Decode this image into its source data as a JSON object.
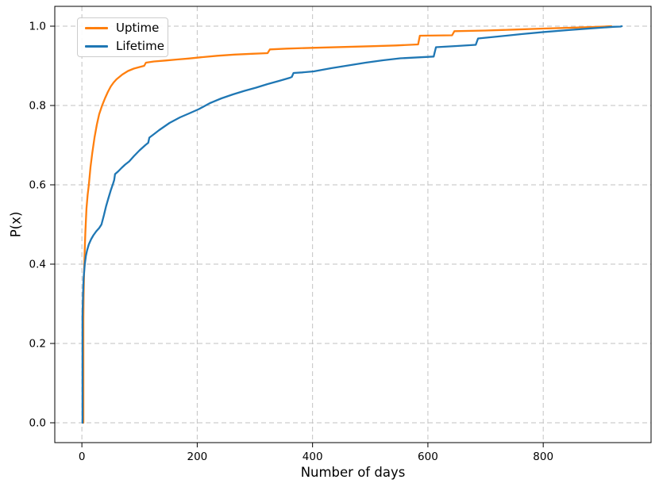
{
  "chart_data": {
    "type": "line",
    "title": "",
    "xlabel": "Number of days",
    "ylabel": "P(x)",
    "xlim": [
      -47,
      987
    ],
    "ylim": [
      -0.05,
      1.05
    ],
    "xticks": [
      0,
      200,
      400,
      600,
      800
    ],
    "yticks": [
      0.0,
      0.2,
      0.4,
      0.6,
      0.8,
      1.0
    ],
    "grid": true,
    "grid_style": "dashed",
    "grid_color": "#c2c2c2",
    "legend_position": "upper left",
    "series": [
      {
        "name": "Uptime",
        "color": "#ff7f0e",
        "points": [
          [
            2.5,
            0.0
          ],
          [
            2.5,
            0.26
          ],
          [
            3,
            0.32
          ],
          [
            4,
            0.385
          ],
          [
            5,
            0.44
          ],
          [
            6,
            0.48
          ],
          [
            8,
            0.54
          ],
          [
            10,
            0.575
          ],
          [
            12,
            0.6
          ],
          [
            15,
            0.645
          ],
          [
            18,
            0.68
          ],
          [
            22,
            0.72
          ],
          [
            26,
            0.752
          ],
          [
            30,
            0.778
          ],
          [
            35,
            0.8
          ],
          [
            40,
            0.818
          ],
          [
            45,
            0.834
          ],
          [
            50,
            0.848
          ],
          [
            55,
            0.858
          ],
          [
            60,
            0.866
          ],
          [
            70,
            0.878
          ],
          [
            80,
            0.887
          ],
          [
            90,
            0.893
          ],
          [
            100,
            0.897
          ],
          [
            108,
            0.9
          ],
          [
            111,
            0.908
          ],
          [
            125,
            0.911
          ],
          [
            145,
            0.9135
          ],
          [
            165,
            0.916
          ],
          [
            185,
            0.9185
          ],
          [
            205,
            0.9215
          ],
          [
            235,
            0.9255
          ],
          [
            265,
            0.9285
          ],
          [
            295,
            0.9305
          ],
          [
            322,
            0.932
          ],
          [
            326,
            0.9415
          ],
          [
            355,
            0.9435
          ],
          [
            400,
            0.9455
          ],
          [
            450,
            0.9475
          ],
          [
            500,
            0.9495
          ],
          [
            545,
            0.9515
          ],
          [
            583,
            0.954
          ],
          [
            586,
            0.976
          ],
          [
            642,
            0.977
          ],
          [
            646,
            0.9875
          ],
          [
            700,
            0.989
          ],
          [
            750,
            0.9915
          ],
          [
            800,
            0.994
          ],
          [
            855,
            0.9965
          ],
          [
            905,
            0.999
          ],
          [
            918,
            1.0
          ]
        ]
      },
      {
        "name": "Lifetime",
        "color": "#1f77b4",
        "points": [
          [
            1,
            0.0
          ],
          [
            1,
            0.27
          ],
          [
            2,
            0.325
          ],
          [
            3,
            0.365
          ],
          [
            5,
            0.4
          ],
          [
            7,
            0.421
          ],
          [
            9,
            0.435
          ],
          [
            12,
            0.45
          ],
          [
            16,
            0.463
          ],
          [
            20,
            0.473
          ],
          [
            25,
            0.483
          ],
          [
            30,
            0.491
          ],
          [
            34,
            0.5
          ],
          [
            38,
            0.522
          ],
          [
            42,
            0.546
          ],
          [
            46,
            0.566
          ],
          [
            50,
            0.586
          ],
          [
            54,
            0.603
          ],
          [
            56,
            0.612
          ],
          [
            57.5,
            0.627
          ],
          [
            63,
            0.634
          ],
          [
            69,
            0.643
          ],
          [
            75,
            0.651
          ],
          [
            82,
            0.659
          ],
          [
            90,
            0.672
          ],
          [
            100,
            0.687
          ],
          [
            110,
            0.7
          ],
          [
            115,
            0.706
          ],
          [
            117,
            0.719
          ],
          [
            126,
            0.729
          ],
          [
            134,
            0.738
          ],
          [
            152,
            0.756
          ],
          [
            170,
            0.77
          ],
          [
            186,
            0.78
          ],
          [
            203,
            0.791
          ],
          [
            222,
            0.806
          ],
          [
            242,
            0.818
          ],
          [
            262,
            0.828
          ],
          [
            282,
            0.837
          ],
          [
            302,
            0.845
          ],
          [
            322,
            0.854
          ],
          [
            342,
            0.862
          ],
          [
            361,
            0.87
          ],
          [
            364,
            0.872
          ],
          [
            367,
            0.882
          ],
          [
            382,
            0.8835
          ],
          [
            402,
            0.886
          ],
          [
            432,
            0.894
          ],
          [
            462,
            0.901
          ],
          [
            492,
            0.908
          ],
          [
            522,
            0.914
          ],
          [
            552,
            0.919
          ],
          [
            610,
            0.9235
          ],
          [
            614,
            0.947
          ],
          [
            650,
            0.95
          ],
          [
            683,
            0.953
          ],
          [
            687,
            0.969
          ],
          [
            722,
            0.974
          ],
          [
            762,
            0.98
          ],
          [
            802,
            0.9855
          ],
          [
            842,
            0.99
          ],
          [
            882,
            0.9945
          ],
          [
            922,
            0.9985
          ],
          [
            934,
            0.999
          ],
          [
            936,
            1.0
          ]
        ]
      }
    ]
  },
  "legend": {
    "items": [
      {
        "label": "Uptime"
      },
      {
        "label": "Lifetime"
      }
    ]
  }
}
